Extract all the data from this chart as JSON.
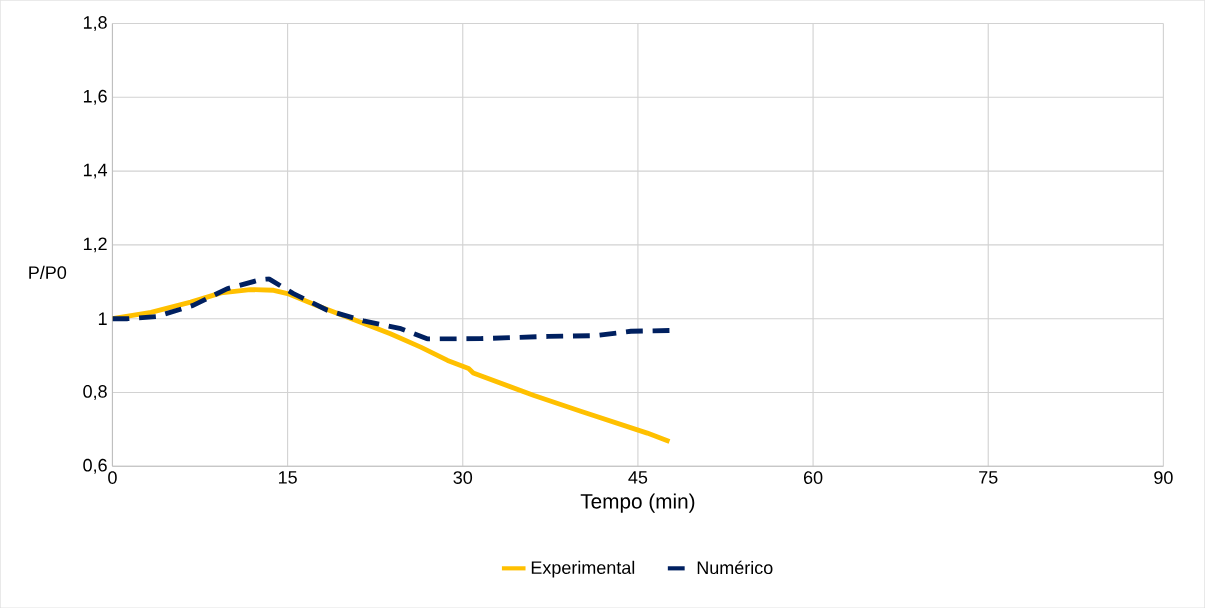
{
  "chart_data": {
    "type": "line",
    "xlabel": "Tempo (min)",
    "ylabel": "P/P0",
    "xlim": [
      0,
      90
    ],
    "xticks": [
      0,
      15,
      30,
      45,
      60,
      75,
      90
    ],
    "ylim": [
      0.6,
      1.8
    ],
    "yticks": [
      {
        "value": 0.6,
        "label": "0,6"
      },
      {
        "value": 0.8,
        "label": "0,8"
      },
      1,
      {
        "value": 1.2,
        "label": "1,2"
      },
      {
        "value": 1.4,
        "label": "1,4"
      },
      {
        "value": 1.6,
        "label": "1,6"
      },
      {
        "value": 1.8,
        "label": "1,8"
      }
    ],
    "grid": true,
    "legend": "bottom",
    "series": [
      {
        "name": "Experimental",
        "color": "#ffc000",
        "line_style": "solid",
        "x": [
          0,
          3.3,
          6.7,
          9.3,
          11.8,
          13.8,
          15,
          17.5,
          20.7,
          23.8,
          26.4,
          28.7,
          30.5,
          30.9,
          36.1,
          40.1,
          45.8,
          47.7
        ],
        "values": [
          1.0,
          1.017,
          1.045,
          1.07,
          1.079,
          1.077,
          1.068,
          1.036,
          0.997,
          0.959,
          0.923,
          0.887,
          0.865,
          0.853,
          0.792,
          0.749,
          0.69,
          0.667
        ]
      },
      {
        "name": "Numérico",
        "color": "#002060",
        "line_style": "dashed",
        "x": [
          0,
          1.3,
          3.8,
          6.9,
          9.8,
          12.7,
          13.4,
          15.5,
          18.4,
          21.5,
          24.7,
          27,
          31.5,
          37.3,
          41.3,
          44.4,
          47.7
        ],
        "values": [
          1.0,
          1.0,
          1.006,
          1.036,
          1.081,
          1.106,
          1.108,
          1.068,
          1.023,
          0.994,
          0.973,
          0.945,
          0.946,
          0.952,
          0.954,
          0.966,
          0.968
        ]
      }
    ]
  }
}
